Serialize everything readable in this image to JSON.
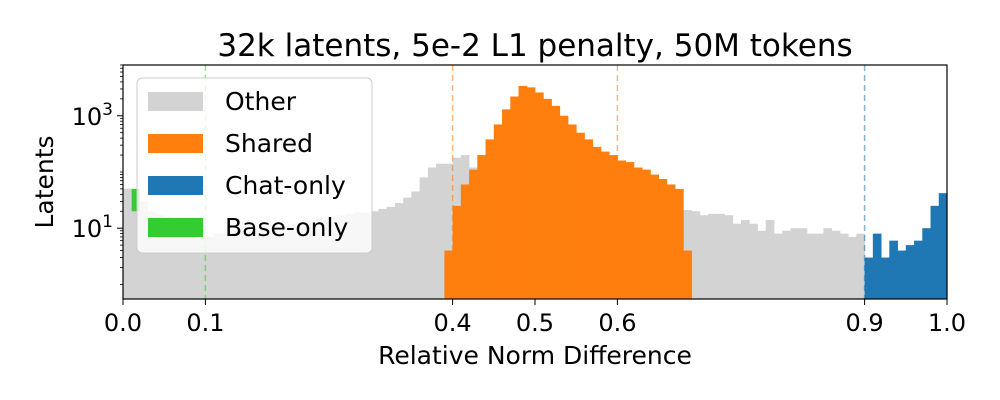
{
  "chart_data": {
    "type": "bar",
    "title": "32k latents, 5e-2 L1 penalty, 50M tokens",
    "xlabel": "Relative Norm Difference",
    "ylabel": "Latents",
    "xlim": [
      0,
      1
    ],
    "ylog": true,
    "ylim": [
      0.55,
      8000
    ],
    "bin_width": 0.01,
    "x_ticks": [
      {
        "value": 0.0,
        "label": "0.0"
      },
      {
        "value": 0.1,
        "label": "0.1"
      },
      {
        "value": 0.4,
        "label": "0.4"
      },
      {
        "value": 0.5,
        "label": "0.5"
      },
      {
        "value": 0.6,
        "label": "0.6"
      },
      {
        "value": 0.9,
        "label": "0.9"
      },
      {
        "value": 1.0,
        "label": "1.0"
      }
    ],
    "y_ticks": [
      {
        "value": 10,
        "base": "10",
        "exp": "1"
      },
      {
        "value": 1000,
        "base": "10",
        "exp": "3"
      }
    ],
    "thresholds": [
      {
        "x": 0.1,
        "color": "#33cc33"
      },
      {
        "x": 0.4,
        "color": "#ff7f0e"
      },
      {
        "x": 0.6,
        "color": "#ff7f0e"
      },
      {
        "x": 0.9,
        "color": "#1f77b4"
      }
    ],
    "legend": {
      "placement": "top-left",
      "entries": [
        {
          "label": "Other",
          "color": "#d3d3d3"
        },
        {
          "label": "Shared",
          "color": "#ff7f0e"
        },
        {
          "label": "Chat-only",
          "color": "#1f77b4"
        },
        {
          "label": "Base-only",
          "color": "#33cc33"
        }
      ]
    },
    "series": [
      {
        "category": "Base-only",
        "color": "#33cc33",
        "x_start": 0.0,
        "values": [
          50,
          50,
          20,
          14,
          12,
          10,
          7,
          7,
          5,
          5
        ]
      },
      {
        "category": "Other",
        "color": "#d3d3d3",
        "x_start": 0.0,
        "values": [
          50,
          20,
          30,
          20,
          18,
          16,
          14,
          12,
          10,
          10,
          7,
          8,
          8,
          9,
          9,
          9,
          10,
          10,
          11,
          11,
          12,
          13,
          14,
          15,
          16,
          16,
          17,
          18,
          19,
          19,
          20,
          22,
          24,
          28,
          35,
          45,
          80,
          120,
          140,
          140,
          180,
          200,
          120,
          110,
          100,
          110,
          130,
          120,
          110,
          120,
          140,
          130,
          130,
          120,
          110,
          100,
          90,
          80,
          70,
          60,
          90,
          60,
          45,
          35,
          25,
          25,
          22,
          18,
          21,
          20,
          17,
          18,
          18,
          17,
          12,
          14,
          12,
          9,
          14,
          8,
          9,
          10,
          10,
          8,
          8,
          10,
          9,
          8,
          7,
          8,
          1
        ]
      },
      {
        "category": "Shared",
        "color": "#ff7f0e",
        "x_start": 0.39,
        "values": [
          4,
          25,
          60,
          110,
          200,
          380,
          700,
          1300,
          2200,
          3400,
          3200,
          2600,
          2000,
          1500,
          1000,
          700,
          500,
          380,
          280,
          230,
          200,
          160,
          150,
          120,
          110,
          90,
          75,
          60,
          50,
          4
        ]
      },
      {
        "category": "Chat-only",
        "color": "#1f77b4",
        "x_start": 0.9,
        "values": [
          3,
          8,
          3,
          6,
          4,
          5,
          6,
          10,
          25,
          42
        ]
      }
    ]
  }
}
